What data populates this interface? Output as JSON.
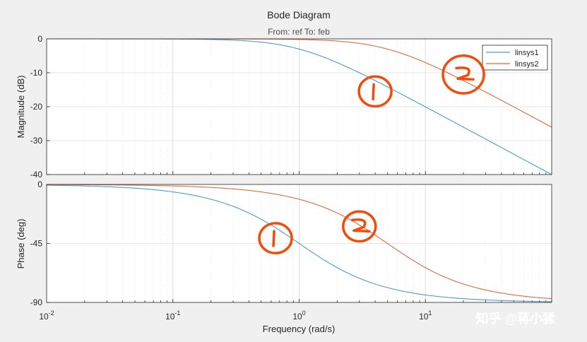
{
  "chart_data": {
    "type": "line",
    "title": "Bode Diagram",
    "subtitle": "From: ref  To: feb",
    "xlabel": "Frequency  (rad/s)",
    "xscale": "log",
    "xlim": [
      0.01,
      100
    ],
    "xticks": [
      {
        "base": "10",
        "exp": "-2"
      },
      {
        "base": "10",
        "exp": "-1"
      },
      {
        "base": "10",
        "exp": "0"
      },
      {
        "base": "10",
        "exp": "1"
      }
    ],
    "legend": {
      "position": "top-right",
      "entries": [
        "linsys1",
        "linsys2"
      ]
    },
    "colors": {
      "linsys1": "#4a9bd4",
      "linsys2": "#e2693a",
      "grid": "#e3e3e3",
      "axis": "#262626",
      "annotation": "#f04d0c"
    },
    "panels": [
      {
        "name": "magnitude",
        "ylabel": "Magnitude (dB)",
        "ylim": [
          -40,
          0
        ],
        "yticks": [
          "0",
          "-10",
          "-20",
          "-30",
          "-40"
        ],
        "series": [
          {
            "name": "linsys1",
            "model": "first-order low-pass",
            "pole_rad_s": 1.0,
            "quantity": "magnitude_db"
          },
          {
            "name": "linsys2",
            "model": "first-order low-pass",
            "pole_rad_s": 5.0,
            "quantity": "magnitude_db"
          }
        ]
      },
      {
        "name": "phase",
        "ylabel": "Phase (deg)",
        "ylim": [
          -90,
          0
        ],
        "yticks": [
          "0",
          "-45",
          "-90"
        ],
        "series": [
          {
            "name": "linsys1",
            "model": "first-order low-pass",
            "pole_rad_s": 1.0,
            "quantity": "phase_deg"
          },
          {
            "name": "linsys2",
            "model": "first-order low-pass",
            "pole_rad_s": 5.0,
            "quantity": "phase_deg"
          }
        ]
      }
    ],
    "annotations": [
      {
        "panel": "magnitude",
        "text": "1",
        "at_rad_s": 4.0,
        "at_value": -15.5
      },
      {
        "panel": "magnitude",
        "text": "2",
        "at_rad_s": 20.0,
        "at_value": -10.5
      },
      {
        "panel": "phase",
        "text": "1",
        "at_rad_s": 0.65,
        "at_value": -41
      },
      {
        "panel": "phase",
        "text": "2",
        "at_rad_s": 3.0,
        "at_value": -32
      }
    ]
  },
  "watermark": "知乎 @蒋小猱"
}
